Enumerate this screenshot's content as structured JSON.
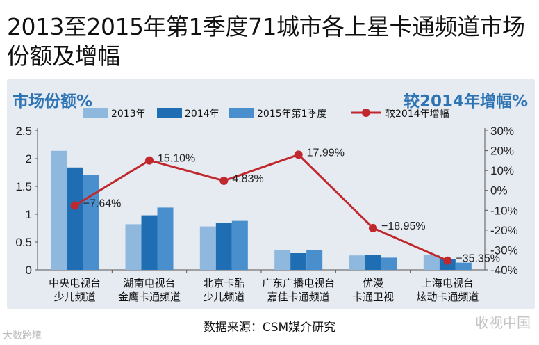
{
  "title": "2013至2015年第1季度71城市各上星卡通频道市场份额及增幅",
  "source": "数据来源：CSM媒介研究",
  "watermarks": {
    "left": "大数跨境",
    "right": "收视中国"
  },
  "colors": {
    "s2013": "#8fb8de",
    "s2014": "#1f6eb4",
    "s2015q1": "#4a8fcd",
    "growth": "#c0282d",
    "panel": "#e6eaf1",
    "axis_title": "#2d74b5"
  },
  "chart_data": {
    "type": "bar",
    "left_axis_title": "市场份额%",
    "right_axis_title": "较2014年增幅%",
    "categories": [
      [
        "中央电视台",
        "少儿频道"
      ],
      [
        "湖南电视台",
        "金鹰卡通频道"
      ],
      [
        "北京卡酷",
        "少儿频道"
      ],
      [
        "广东广播电视台",
        "嘉佳卡通频道"
      ],
      [
        "优漫",
        "卡通卫视"
      ],
      [
        "上海电视台",
        "炫动卡通频道"
      ]
    ],
    "series": [
      {
        "name": "2013年",
        "values": [
          2.14,
          0.82,
          0.78,
          0.36,
          0.26,
          0.27
        ]
      },
      {
        "name": "2014年",
        "values": [
          1.84,
          0.98,
          0.84,
          0.3,
          0.27,
          0.19
        ]
      },
      {
        "name": "2015年第1季度",
        "values": [
          1.7,
          1.12,
          0.88,
          0.36,
          0.22,
          0.13
        ]
      }
    ],
    "line_series": {
      "name": "较2014年增幅",
      "values": [
        -7.64,
        15.1,
        4.83,
        17.99,
        -18.95,
        -35.35
      ],
      "labels": [
        "−7.64%",
        "15.10%",
        "4.83%",
        "17.99%",
        "−18.95%",
        "−35.35%"
      ]
    },
    "y_left": {
      "range": [
        0,
        2.5
      ],
      "ticks": [
        "0",
        "0.5",
        "1",
        "1.5",
        "2",
        "2.5"
      ]
    },
    "y_right": {
      "range": [
        -40,
        30
      ],
      "ticks": [
        "30%",
        "20%",
        "10%",
        "0%",
        "-10%",
        "-20%",
        "-30%",
        "-40%"
      ]
    },
    "grid": false,
    "legend_position": "top"
  }
}
